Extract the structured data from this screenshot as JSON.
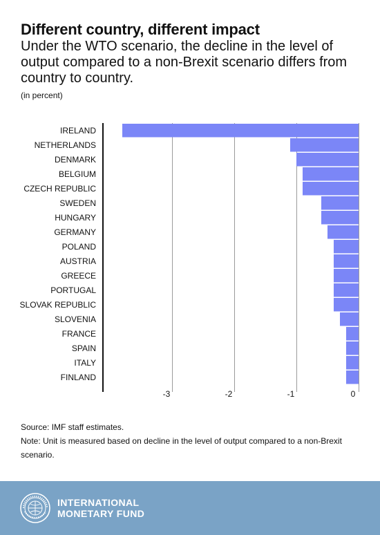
{
  "header": {
    "title": "Different country, different impact",
    "subtitle": "Under the WTO scenario, the decline in the level of output compared to a non-Brexit scenario differs from country to country.",
    "unit": "(in percent)"
  },
  "chart_data": {
    "type": "bar",
    "orientation": "horizontal",
    "categories": [
      "IRELAND",
      "NETHERLANDS",
      "DENMARK",
      "BELGIUM",
      "CZECH REPUBLIC",
      "SWEDEN",
      "HUNGARY",
      "GERMANY",
      "POLAND",
      "AUSTRIA",
      "GREECE",
      "PORTUGAL",
      "SLOVAK REPUBLIC",
      "SLOVENIA",
      "FRANCE",
      "SPAIN",
      "ITALY",
      "FINLAND"
    ],
    "values": [
      -3.8,
      -1.1,
      -1.0,
      -0.9,
      -0.9,
      -0.6,
      -0.6,
      -0.5,
      -0.4,
      -0.4,
      -0.4,
      -0.4,
      -0.4,
      -0.3,
      -0.2,
      -0.2,
      -0.2,
      -0.2
    ],
    "xlim": [
      -4,
      0
    ],
    "xticks": [
      -3,
      -2,
      -1,
      0
    ],
    "xtick_labels": [
      "-3",
      "-2",
      "-1",
      "0"
    ],
    "grid": true,
    "bar_color": "#7b86f7"
  },
  "footer": {
    "source": "Source: IMF staff estimates.",
    "note": "Note: Unit is measured based on decline in the level of output compared to a non-Brexit scenario.",
    "org_line1": "INTERNATIONAL",
    "org_line2": "MONETARY FUND",
    "background": "#7aa3c6"
  }
}
